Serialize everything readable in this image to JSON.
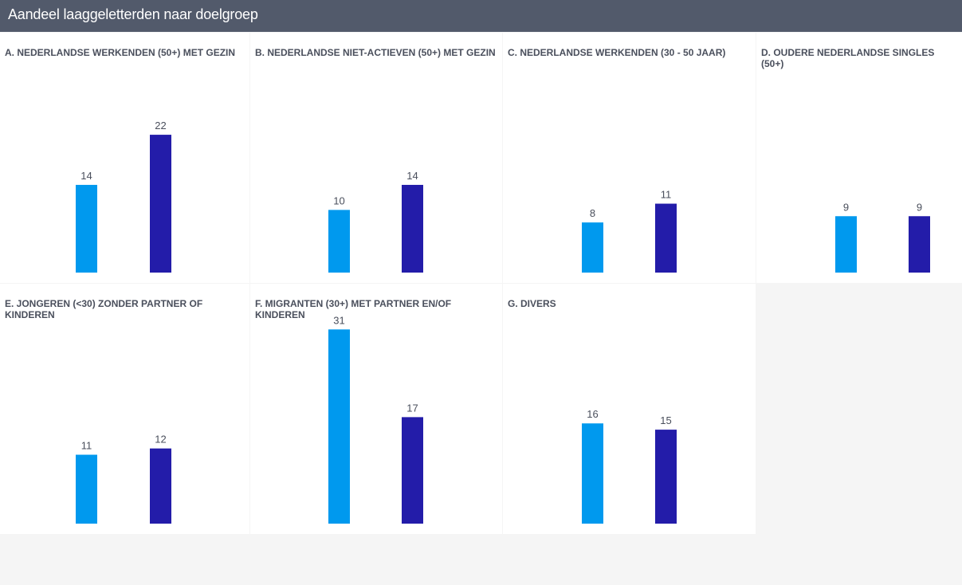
{
  "header": {
    "title": "Aandeel laaggeletterden naar doelgroep"
  },
  "colors": {
    "series1": "#0099ee",
    "series2": "#231ca9",
    "header_bg": "#525a6b"
  },
  "chart_data": [
    {
      "type": "bar",
      "title": "A. NEDERLANDSE WERKENDEN (50+) MET GEZIN",
      "values": [
        14,
        22
      ]
    },
    {
      "type": "bar",
      "title": "B. NEDERLANDSE NIET-ACTIEVEN (50+) MET GEZIN",
      "values": [
        10,
        14
      ]
    },
    {
      "type": "bar",
      "title": "C. NEDERLANDSE WERKENDEN (30 - 50 JAAR)",
      "values": [
        8,
        11
      ]
    },
    {
      "type": "bar",
      "title": "D. OUDERE NEDERLANDSE SINGLES (50+)",
      "values": [
        9,
        9
      ]
    },
    {
      "type": "bar",
      "title": "E. JONGEREN (<30) ZONDER PARTNER OF KINDEREN",
      "values": [
        11,
        12
      ]
    },
    {
      "type": "bar",
      "title": "F. MIGRANTEN (30+) MET PARTNER EN/OF KINDEREN",
      "values": [
        31,
        17
      ]
    },
    {
      "type": "bar",
      "title": "G. DIVERS",
      "values": [
        16,
        15
      ]
    }
  ]
}
